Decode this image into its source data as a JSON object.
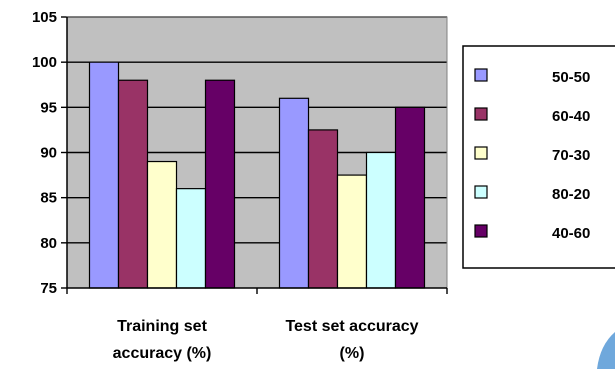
{
  "chart_data": {
    "type": "bar",
    "title": "",
    "xlabel": "",
    "ylabel": "",
    "ylim": [
      75,
      105
    ],
    "yticks": [
      75,
      80,
      85,
      90,
      95,
      100,
      105
    ],
    "grid": true,
    "plot_background": "#C0C0C0",
    "legend_position": "right",
    "categories": [
      [
        "Training set",
        "accuracy (%)"
      ],
      [
        "Test set accuracy",
        "(%)"
      ]
    ],
    "series": [
      {
        "name": "50-50",
        "color": "#9999FF",
        "values": [
          100,
          96
        ]
      },
      {
        "name": "60-40",
        "color": "#993366",
        "values": [
          98,
          92.5
        ]
      },
      {
        "name": "70-30",
        "color": "#FFFFCC",
        "values": [
          89,
          87.5
        ]
      },
      {
        "name": "80-20",
        "color": "#CCFFFF",
        "values": [
          86,
          90
        ]
      },
      {
        "name": "40-60",
        "color": "#660066",
        "values": [
          98,
          95
        ]
      }
    ]
  }
}
